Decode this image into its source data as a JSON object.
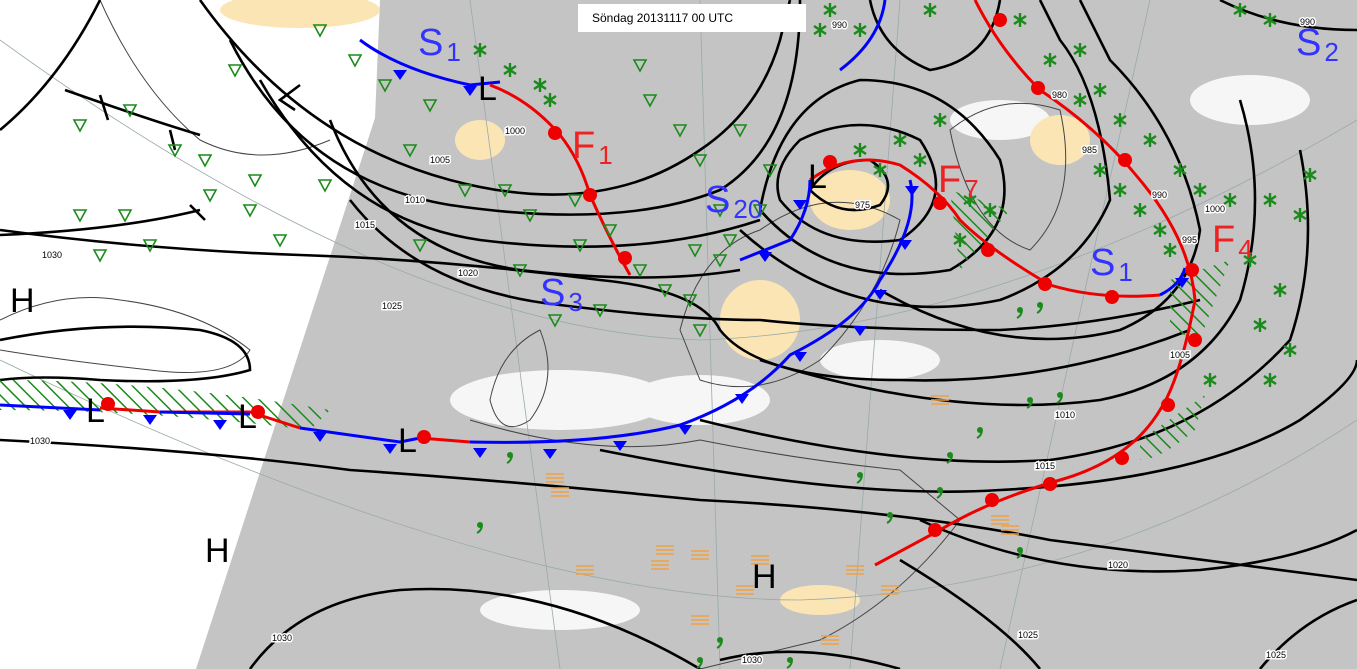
{
  "title": "Söndag 20131117 00 UTC",
  "pressure_centers": [
    "H",
    "H",
    "H",
    "L",
    "L",
    "L",
    "L",
    "L"
  ],
  "front_labels": [
    {
      "letter": "S",
      "index": "1"
    },
    {
      "letter": "F",
      "index": "1"
    },
    {
      "letter": "S",
      "index": "20"
    },
    {
      "letter": "F",
      "index": "7"
    },
    {
      "letter": "S",
      "index": "3"
    },
    {
      "letter": "S",
      "index": "1"
    },
    {
      "letter": "F",
      "index": "4"
    },
    {
      "letter": "S",
      "index": "2"
    }
  ],
  "isobar_labels": [
    1030,
    1000,
    1005,
    1010,
    1015,
    1020,
    1025,
    1030,
    1030,
    1030,
    990,
    975,
    980,
    985,
    990,
    995,
    1000,
    1005,
    1010,
    1015,
    1020,
    1025,
    1025,
    990
  ]
}
